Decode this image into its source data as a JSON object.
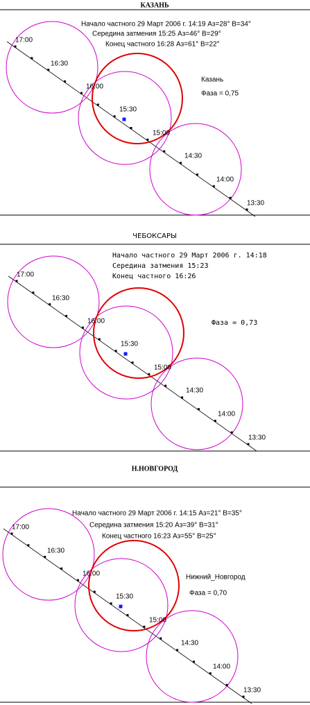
{
  "panels": [
    {
      "title": "КАЗАНЬ",
      "lines": [
        "Начало частного  29 Март  2006  г.  14:19 Аз=28°  В=34°",
        "Середина затмения 15:25 Аз=46°  В=29°",
        "Конец частного  16:28 Аз=61°  В=22°"
      ],
      "city": "Казань",
      "phase": "Фаза = 0,75",
      "times": [
        "17:00",
        "16:30",
        "16:00",
        "15:30",
        "15:00",
        "14:30",
        "14:00",
        "13:30"
      ]
    },
    {
      "title": "ЧЕБОКСАРЫ",
      "lines": [
        "Начало частного 29 Март 2006 г. 14:18",
        "Середина затмения 15:23",
        "Конец частного 16:26"
      ],
      "phase": "Фаза = 0,73",
      "times": [
        "17:00",
        "16:30",
        "16:00",
        "15:30",
        "15:00",
        "14:30",
        "14:00",
        "13:30"
      ]
    },
    {
      "title": "Н.НОВГОРОД",
      "lines": [
        "Начало частного  29 Март  2006  г.  14:15 Аз=21°  В=35°",
        "Середина затмения 15:20 Аз=39°  В=31°",
        "Конец частного  16:23 Аз=55°  В=25°"
      ],
      "city": "Нижний_Новгород",
      "phase": "Фаза = 0,70",
      "times": [
        "17:00",
        "16:30",
        "16:00",
        "15:30",
        "15:00",
        "14:30",
        "14:00",
        "13:30"
      ]
    }
  ]
}
